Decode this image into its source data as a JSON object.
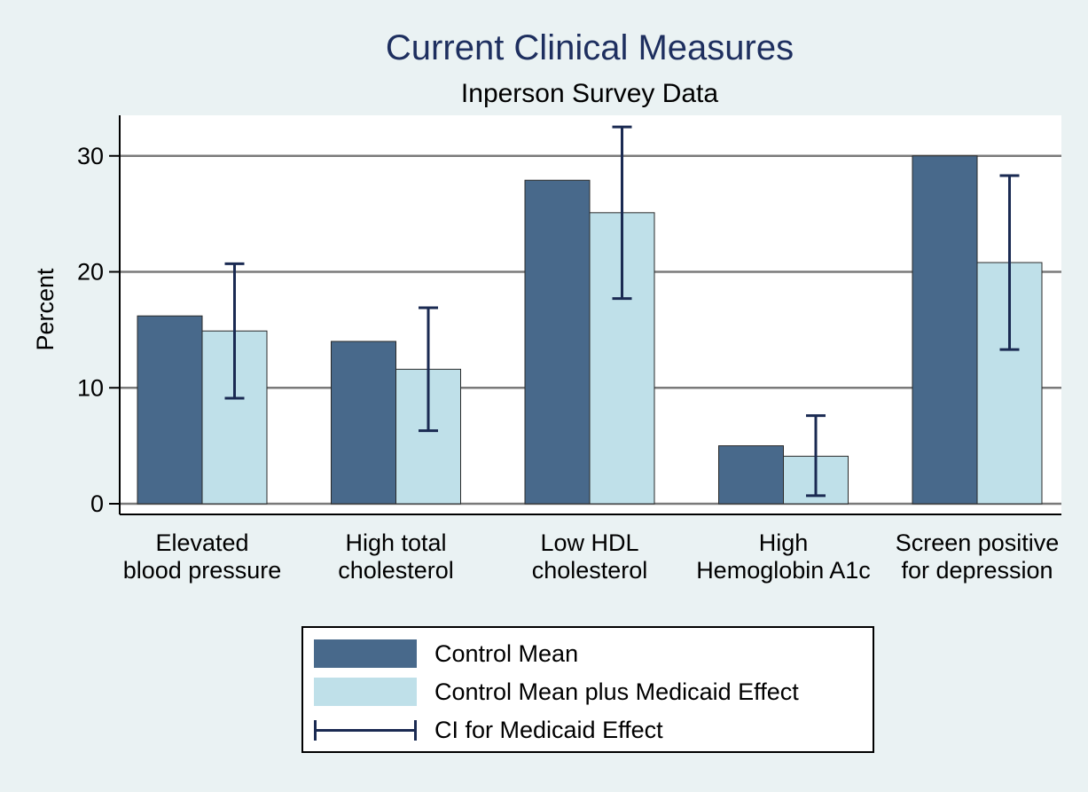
{
  "chart_data": {
    "type": "bar",
    "title": "Current Clinical Measures",
    "subtitle": "Inperson Survey Data",
    "ylabel": "Percent",
    "xlabel": "",
    "ylim": [
      0,
      33.5
    ],
    "yticks": [
      0,
      10,
      20,
      30
    ],
    "grid": true,
    "legend_position": "bottom",
    "categories": [
      [
        "Elevated",
        "blood pressure"
      ],
      [
        "High total",
        "cholesterol"
      ],
      [
        "Low HDL",
        "cholesterol"
      ],
      [
        "High",
        "Hemoglobin A1c"
      ],
      [
        "Screen positive",
        "for depression"
      ]
    ],
    "series": [
      {
        "name": "Control Mean",
        "color": "#48698b",
        "values": [
          16.2,
          14.0,
          27.9,
          5.0,
          30.0
        ]
      },
      {
        "name": "Control Mean plus Medicaid Effect",
        "color": "#bfe0e9",
        "values": [
          14.9,
          11.6,
          25.1,
          4.1,
          20.8
        ]
      }
    ],
    "error_bars": {
      "name": "CI for Medicaid Effect",
      "color": "#1a2a52",
      "lower": [
        9.1,
        6.3,
        17.7,
        0.7,
        13.3
      ],
      "upper": [
        20.7,
        16.9,
        32.5,
        7.6,
        28.3
      ]
    }
  }
}
